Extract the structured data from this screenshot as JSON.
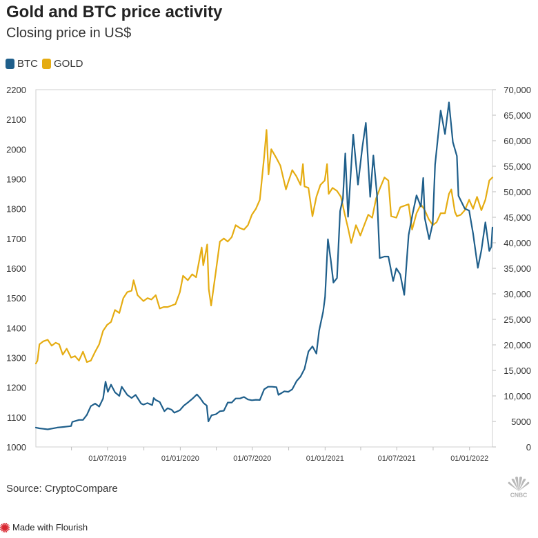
{
  "header": {
    "title": "Gold and BTC price activity",
    "subtitle": "Closing price in US$"
  },
  "legend": [
    {
      "label": "BTC",
      "color": "#1f5f8b"
    },
    {
      "label": "GOLD",
      "color": "#e5ac12"
    }
  ],
  "footer": {
    "source": "Source: CryptoCompare",
    "logo_icon": "cnbc-peacock-icon",
    "flourish_label": "Made with Flourish",
    "flourish_icon": "flourish-burst-icon"
  },
  "chart_data": {
    "type": "line",
    "title": "Gold and BTC price activity",
    "subtitle": "Closing price in US$",
    "legend_position": "top-left",
    "grid": false,
    "x_ticks": [
      "01/07/2019",
      "01/01/2020",
      "01/07/2020",
      "01/01/2021",
      "01/07/2021",
      "01/01/2022"
    ],
    "x_range": [
      "2019-01-01",
      "2022-02-28"
    ],
    "y_left": {
      "series": "GOLD",
      "range": [
        1000,
        2200
      ],
      "ticks": [
        "1000",
        "1100",
        "1200",
        "1300",
        "1400",
        "1500",
        "1600",
        "1700",
        "1800",
        "1900",
        "2000",
        "2100",
        "2200"
      ]
    },
    "y_right": {
      "series": "BTC",
      "range": [
        0,
        70000
      ],
      "ticks": [
        "0",
        "5000",
        "10,000",
        "15,000",
        "20,000",
        "25,000",
        "30,000",
        "35,000",
        "40,000",
        "45,000",
        "50,000",
        "55,000",
        "60,000",
        "65,000",
        "70,000"
      ]
    },
    "series": [
      {
        "name": "GOLD",
        "color": "#e5ac12",
        "axis": "left",
        "points": [
          [
            "2019-01-01",
            1280
          ],
          [
            "2019-01-05",
            1290
          ],
          [
            "2019-01-10",
            1345
          ],
          [
            "2019-01-20",
            1355
          ],
          [
            "2019-01-31",
            1360
          ],
          [
            "2019-02-10",
            1340
          ],
          [
            "2019-02-20",
            1350
          ],
          [
            "2019-03-01",
            1345
          ],
          [
            "2019-03-10",
            1310
          ],
          [
            "2019-03-20",
            1330
          ],
          [
            "2019-03-31",
            1300
          ],
          [
            "2019-04-10",
            1305
          ],
          [
            "2019-04-20",
            1290
          ],
          [
            "2019-04-30",
            1320
          ],
          [
            "2019-05-10",
            1285
          ],
          [
            "2019-05-20",
            1290
          ],
          [
            "2019-05-31",
            1320
          ],
          [
            "2019-06-10",
            1345
          ],
          [
            "2019-06-20",
            1390
          ],
          [
            "2019-06-30",
            1410
          ],
          [
            "2019-07-10",
            1420
          ],
          [
            "2019-07-20",
            1460
          ],
          [
            "2019-07-31",
            1450
          ],
          [
            "2019-08-10",
            1500
          ],
          [
            "2019-08-20",
            1520
          ],
          [
            "2019-08-31",
            1525
          ],
          [
            "2019-09-05",
            1560
          ],
          [
            "2019-09-15",
            1510
          ],
          [
            "2019-09-30",
            1490
          ],
          [
            "2019-10-10",
            1500
          ],
          [
            "2019-10-20",
            1495
          ],
          [
            "2019-10-31",
            1510
          ],
          [
            "2019-11-10",
            1465
          ],
          [
            "2019-11-20",
            1470
          ],
          [
            "2019-11-30",
            1470
          ],
          [
            "2019-12-10",
            1475
          ],
          [
            "2019-12-20",
            1480
          ],
          [
            "2019-12-31",
            1520
          ],
          [
            "2020-01-08",
            1575
          ],
          [
            "2020-01-20",
            1560
          ],
          [
            "2020-01-31",
            1580
          ],
          [
            "2020-02-10",
            1570
          ],
          [
            "2020-02-24",
            1670
          ],
          [
            "2020-02-28",
            1610
          ],
          [
            "2020-03-09",
            1680
          ],
          [
            "2020-03-13",
            1530
          ],
          [
            "2020-03-19",
            1475
          ],
          [
            "2020-03-31",
            1590
          ],
          [
            "2020-04-10",
            1690
          ],
          [
            "2020-04-20",
            1700
          ],
          [
            "2020-04-30",
            1690
          ],
          [
            "2020-05-10",
            1705
          ],
          [
            "2020-05-20",
            1745
          ],
          [
            "2020-05-31",
            1735
          ],
          [
            "2020-06-10",
            1730
          ],
          [
            "2020-06-20",
            1745
          ],
          [
            "2020-06-30",
            1780
          ],
          [
            "2020-07-10",
            1800
          ],
          [
            "2020-07-20",
            1830
          ],
          [
            "2020-07-31",
            1975
          ],
          [
            "2020-08-06",
            2065
          ],
          [
            "2020-08-11",
            1915
          ],
          [
            "2020-08-18",
            2000
          ],
          [
            "2020-08-31",
            1970
          ],
          [
            "2020-09-10",
            1945
          ],
          [
            "2020-09-24",
            1865
          ],
          [
            "2020-09-30",
            1890
          ],
          [
            "2020-10-10",
            1930
          ],
          [
            "2020-10-20",
            1910
          ],
          [
            "2020-10-31",
            1880
          ],
          [
            "2020-11-06",
            1950
          ],
          [
            "2020-11-10",
            1875
          ],
          [
            "2020-11-20",
            1870
          ],
          [
            "2020-11-30",
            1775
          ],
          [
            "2020-12-10",
            1840
          ],
          [
            "2020-12-20",
            1880
          ],
          [
            "2020-12-31",
            1895
          ],
          [
            "2021-01-06",
            1950
          ],
          [
            "2021-01-10",
            1850
          ],
          [
            "2021-01-20",
            1870
          ],
          [
            "2021-01-31",
            1860
          ],
          [
            "2021-02-10",
            1840
          ],
          [
            "2021-02-20",
            1780
          ],
          [
            "2021-02-28",
            1735
          ],
          [
            "2021-03-08",
            1685
          ],
          [
            "2021-03-20",
            1745
          ],
          [
            "2021-03-31",
            1710
          ],
          [
            "2021-04-10",
            1745
          ],
          [
            "2021-04-20",
            1780
          ],
          [
            "2021-04-30",
            1770
          ],
          [
            "2021-05-10",
            1835
          ],
          [
            "2021-05-20",
            1870
          ],
          [
            "2021-05-31",
            1905
          ],
          [
            "2021-06-10",
            1895
          ],
          [
            "2021-06-17",
            1775
          ],
          [
            "2021-06-30",
            1770
          ],
          [
            "2021-07-10",
            1805
          ],
          [
            "2021-07-20",
            1810
          ],
          [
            "2021-07-31",
            1815
          ],
          [
            "2021-08-09",
            1730
          ],
          [
            "2021-08-20",
            1785
          ],
          [
            "2021-08-31",
            1815
          ],
          [
            "2021-09-10",
            1795
          ],
          [
            "2021-09-20",
            1765
          ],
          [
            "2021-09-30",
            1745
          ],
          [
            "2021-10-10",
            1755
          ],
          [
            "2021-10-20",
            1785
          ],
          [
            "2021-10-31",
            1785
          ],
          [
            "2021-11-10",
            1850
          ],
          [
            "2021-11-16",
            1865
          ],
          [
            "2021-11-25",
            1790
          ],
          [
            "2021-11-30",
            1775
          ],
          [
            "2021-12-10",
            1780
          ],
          [
            "2021-12-20",
            1795
          ],
          [
            "2021-12-31",
            1830
          ],
          [
            "2022-01-10",
            1800
          ],
          [
            "2022-01-20",
            1840
          ],
          [
            "2022-01-31",
            1795
          ],
          [
            "2022-02-10",
            1830
          ],
          [
            "2022-02-20",
            1895
          ],
          [
            "2022-02-28",
            1905
          ]
        ]
      },
      {
        "name": "BTC",
        "color": "#1f5f8b",
        "axis": "right",
        "points": [
          [
            "2019-01-01",
            3800
          ],
          [
            "2019-01-10",
            3650
          ],
          [
            "2019-01-20",
            3550
          ],
          [
            "2019-01-31",
            3450
          ],
          [
            "2019-02-10",
            3600
          ],
          [
            "2019-02-24",
            3800
          ],
          [
            "2019-03-10",
            3900
          ],
          [
            "2019-03-31",
            4100
          ],
          [
            "2019-04-03",
            4900
          ],
          [
            "2019-04-20",
            5300
          ],
          [
            "2019-04-30",
            5300
          ],
          [
            "2019-05-10",
            6300
          ],
          [
            "2019-05-20",
            8000
          ],
          [
            "2019-05-31",
            8500
          ],
          [
            "2019-06-10",
            7900
          ],
          [
            "2019-06-20",
            9500
          ],
          [
            "2019-06-26",
            12800
          ],
          [
            "2019-07-02",
            10800
          ],
          [
            "2019-07-10",
            12200
          ],
          [
            "2019-07-20",
            10700
          ],
          [
            "2019-07-31",
            10000
          ],
          [
            "2019-08-06",
            11800
          ],
          [
            "2019-08-20",
            10200
          ],
          [
            "2019-08-31",
            9600
          ],
          [
            "2019-09-10",
            10200
          ],
          [
            "2019-09-24",
            8500
          ],
          [
            "2019-09-30",
            8300
          ],
          [
            "2019-10-10",
            8600
          ],
          [
            "2019-10-22",
            8200
          ],
          [
            "2019-10-26",
            9600
          ],
          [
            "2019-10-31",
            9200
          ],
          [
            "2019-11-10",
            8800
          ],
          [
            "2019-11-22",
            7000
          ],
          [
            "2019-11-30",
            7600
          ],
          [
            "2019-12-10",
            7300
          ],
          [
            "2019-12-17",
            6700
          ],
          [
            "2019-12-31",
            7200
          ],
          [
            "2020-01-10",
            8100
          ],
          [
            "2020-01-20",
            8700
          ],
          [
            "2020-01-31",
            9400
          ],
          [
            "2020-02-12",
            10300
          ],
          [
            "2020-02-20",
            9600
          ],
          [
            "2020-02-29",
            8600
          ],
          [
            "2020-03-08",
            8100
          ],
          [
            "2020-03-12",
            5000
          ],
          [
            "2020-03-20",
            6200
          ],
          [
            "2020-03-31",
            6400
          ],
          [
            "2020-04-10",
            7000
          ],
          [
            "2020-04-20",
            7100
          ],
          [
            "2020-04-30",
            8700
          ],
          [
            "2020-05-10",
            8700
          ],
          [
            "2020-05-20",
            9500
          ],
          [
            "2020-05-31",
            9500
          ],
          [
            "2020-06-10",
            9800
          ],
          [
            "2020-06-20",
            9300
          ],
          [
            "2020-06-30",
            9150
          ],
          [
            "2020-07-10",
            9250
          ],
          [
            "2020-07-20",
            9200
          ],
          [
            "2020-07-31",
            11300
          ],
          [
            "2020-08-10",
            11800
          ],
          [
            "2020-08-20",
            11800
          ],
          [
            "2020-08-31",
            11700
          ],
          [
            "2020-09-05",
            10200
          ],
          [
            "2020-09-20",
            10900
          ],
          [
            "2020-09-30",
            10800
          ],
          [
            "2020-10-10",
            11300
          ],
          [
            "2020-10-21",
            12900
          ],
          [
            "2020-10-31",
            13800
          ],
          [
            "2020-11-10",
            15300
          ],
          [
            "2020-11-20",
            18700
          ],
          [
            "2020-11-30",
            19700
          ],
          [
            "2020-12-10",
            18300
          ],
          [
            "2020-12-17",
            22800
          ],
          [
            "2020-12-27",
            26500
          ],
          [
            "2021-01-01",
            29400
          ],
          [
            "2021-01-08",
            40700
          ],
          [
            "2021-01-15",
            36800
          ],
          [
            "2021-01-22",
            32200
          ],
          [
            "2021-01-31",
            33100
          ],
          [
            "2021-02-08",
            46200
          ],
          [
            "2021-02-15",
            48700
          ],
          [
            "2021-02-21",
            57500
          ],
          [
            "2021-02-28",
            45100
          ],
          [
            "2021-03-13",
            61200
          ],
          [
            "2021-03-25",
            51400
          ],
          [
            "2021-04-05",
            58700
          ],
          [
            "2021-04-14",
            63500
          ],
          [
            "2021-04-25",
            49000
          ],
          [
            "2021-05-03",
            57100
          ],
          [
            "2021-05-12",
            49500
          ],
          [
            "2021-05-19",
            37000
          ],
          [
            "2021-05-31",
            37300
          ],
          [
            "2021-06-10",
            37300
          ],
          [
            "2021-06-22",
            32500
          ],
          [
            "2021-06-30",
            35000
          ],
          [
            "2021-07-10",
            33800
          ],
          [
            "2021-07-20",
            29800
          ],
          [
            "2021-07-31",
            41500
          ],
          [
            "2021-08-10",
            45600
          ],
          [
            "2021-08-20",
            49300
          ],
          [
            "2021-08-31",
            47100
          ],
          [
            "2021-09-06",
            52700
          ],
          [
            "2021-09-10",
            44800
          ],
          [
            "2021-09-21",
            40700
          ],
          [
            "2021-09-30",
            43800
          ],
          [
            "2021-10-06",
            55300
          ],
          [
            "2021-10-20",
            65900
          ],
          [
            "2021-10-31",
            61300
          ],
          [
            "2021-11-10",
            67500
          ],
          [
            "2021-11-20",
            59700
          ],
          [
            "2021-11-30",
            57000
          ],
          [
            "2021-12-04",
            49200
          ],
          [
            "2021-12-20",
            46700
          ],
          [
            "2021-12-31",
            46300
          ],
          [
            "2022-01-10",
            41800
          ],
          [
            "2022-01-22",
            35100
          ],
          [
            "2022-01-31",
            38500
          ],
          [
            "2022-02-10",
            44000
          ],
          [
            "2022-02-20",
            38400
          ],
          [
            "2022-02-25",
            39200
          ],
          [
            "2022-02-28",
            43000
          ]
        ]
      }
    ]
  }
}
